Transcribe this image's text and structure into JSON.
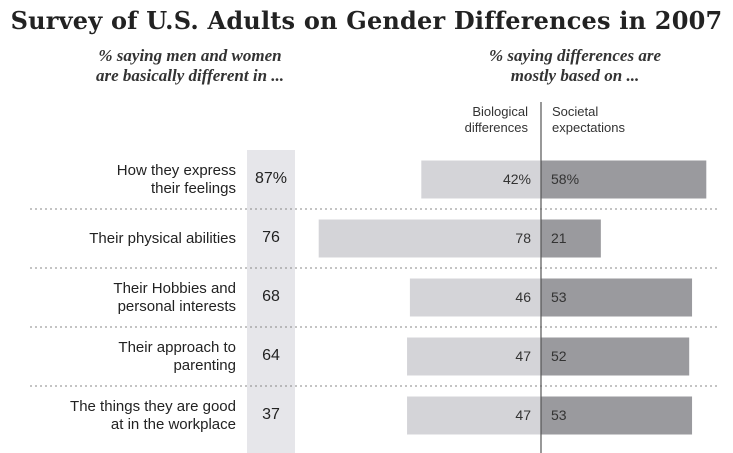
{
  "title": "Survey of U.S. Adults on Gender Differences in 2007",
  "left_subtitle": "% saying men and women\nare basically different in ...",
  "right_subtitle": "% saying differences are\nmostly based on ...",
  "columns": {
    "biological": "Biological\ndifferences",
    "societal": "Societal\nexpectations"
  },
  "colors": {
    "biological_bar": "#d4d4d8",
    "societal_bar": "#9a9a9e",
    "percent_column": "#e6e6ea",
    "divider": "#555555"
  },
  "chart_data": {
    "type": "bar",
    "title": "Survey of U.S. Adults on Gender Differences in 2007",
    "categories": [
      "How they express\ntheir feelings",
      "Their physical abilities",
      "Their Hobbies and\npersonal interests",
      "Their approach to\nparenting",
      "The things they are good\nat in the workplace"
    ],
    "percent_saying_different": [
      "87%",
      "76",
      "68",
      "64",
      "37"
    ],
    "percent_values": [
      87,
      76,
      68,
      64,
      37
    ],
    "series": [
      {
        "name": "Biological differences",
        "values": [
          42,
          78,
          46,
          47,
          47
        ],
        "labels": [
          "42%",
          "78",
          "46",
          "47",
          "47"
        ]
      },
      {
        "name": "Societal expectations",
        "values": [
          58,
          21,
          53,
          52,
          53
        ],
        "labels": [
          "58%",
          "21",
          "53",
          "52",
          "53"
        ]
      }
    ],
    "orientation": "diverging-horizontal"
  }
}
